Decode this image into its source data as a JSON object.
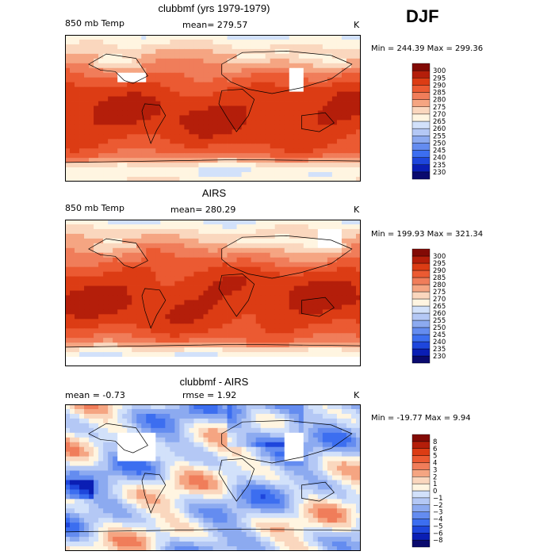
{
  "season": "DJF",
  "colors": {
    "temp": [
      "#0a0a6e",
      "#0a1eb4",
      "#1e46dc",
      "#3c6ef0",
      "#648cf0",
      "#8caaf0",
      "#b4c8f5",
      "#d2e1fa",
      "#fff5e1",
      "#fad7be",
      "#f5a582",
      "#f07d5a",
      "#eb5a32",
      "#dc3c14",
      "#b41e0a",
      "#820a05"
    ],
    "diff": [
      "#0a0a6e",
      "#0a1eb4",
      "#1e46dc",
      "#3c6ef0",
      "#648cf0",
      "#8caaf0",
      "#b4c8f5",
      "#d2e1fa",
      "#fff5e1",
      "#fad7be",
      "#f5a582",
      "#f07d5a",
      "#eb5a32",
      "#dc3c14",
      "#b41e0a",
      "#820a05"
    ],
    "land": "#000000"
  },
  "chart_data": [
    {
      "type": "heatmap",
      "title": "clubbmf (yrs 1979-1979)",
      "left_label": "850 mb Temp",
      "center_label": "mean= 279.57",
      "units": "K",
      "minmax": "Min = 244.39 Max = 299.36",
      "mean": 279.57,
      "min": 244.39,
      "max": 299.36,
      "levels": [
        230,
        235,
        240,
        245,
        250,
        255,
        260,
        265,
        270,
        275,
        280,
        285,
        290,
        295,
        300
      ],
      "level_labels": [
        "230",
        "235",
        "240",
        "245",
        "250",
        "255",
        "260",
        "265",
        "270",
        "275",
        "280",
        "285",
        "290",
        "295",
        "300"
      ]
    },
    {
      "type": "heatmap",
      "title": "AIRS",
      "left_label": "850 mb Temp",
      "center_label": "mean= 280.29",
      "units": "K",
      "minmax": "Min = 199.93 Max = 321.34",
      "mean": 280.29,
      "min": 199.93,
      "max": 321.34,
      "levels": [
        230,
        235,
        240,
        245,
        250,
        255,
        260,
        265,
        270,
        275,
        280,
        285,
        290,
        295,
        300
      ],
      "level_labels": [
        "230",
        "235",
        "240",
        "245",
        "250",
        "255",
        "260",
        "265",
        "270",
        "275",
        "280",
        "285",
        "290",
        "295",
        "300"
      ]
    },
    {
      "type": "heatmap",
      "title": "clubbmf - AIRS",
      "left_label": "mean =  -0.73",
      "center_label": "rmse =   1.92",
      "units": "K",
      "minmax": "Min = -19.77 Max =   9.94",
      "mean": -0.73,
      "rmse": 1.92,
      "min": -19.77,
      "max": 9.94,
      "levels": [
        -8,
        -6,
        -5,
        -4,
        -3,
        -2,
        -1,
        0,
        1,
        2,
        3,
        4,
        5,
        6,
        8
      ],
      "level_labels": [
        "−8",
        "−6",
        "−5",
        "−4",
        "−3",
        "−2",
        "−1",
        "0",
        "1",
        "2",
        "3",
        "4",
        "5",
        "6",
        "8"
      ]
    }
  ]
}
